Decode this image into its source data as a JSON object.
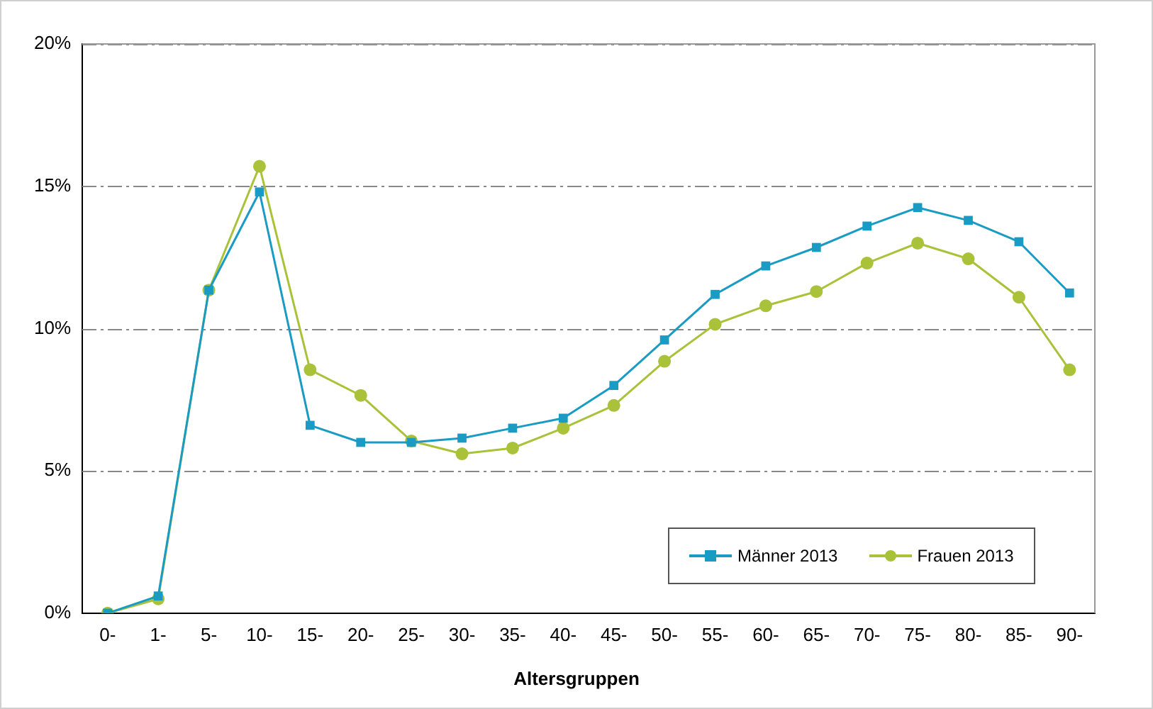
{
  "chart_data": {
    "type": "line",
    "xlabel": "Altersgruppen",
    "categories": [
      "0-",
      "1-",
      "5-",
      "10-",
      "15-",
      "20-",
      "25-",
      "30-",
      "35-",
      "40-",
      "45-",
      "50-",
      "55-",
      "60-",
      "65-",
      "70-",
      "75-",
      "80-",
      "85-",
      "90-"
    ],
    "series": [
      {
        "name": "Männer 2013",
        "color": "#1a9bc4",
        "marker": "square",
        "values": [
          0,
          0.6,
          11.35,
          14.8,
          6.6,
          6.0,
          6.0,
          6.15,
          6.5,
          6.85,
          8.0,
          9.6,
          11.2,
          12.2,
          12.85,
          13.6,
          14.25,
          13.8,
          13.05,
          11.25
        ]
      },
      {
        "name": "Frauen 2013",
        "color": "#a9c23a",
        "marker": "circle",
        "values": [
          0,
          0.5,
          11.35,
          15.7,
          8.55,
          7.65,
          6.05,
          5.6,
          5.8,
          6.5,
          7.3,
          8.85,
          10.15,
          10.8,
          11.3,
          12.3,
          13.0,
          12.45,
          11.1,
          8.55
        ]
      }
    ],
    "ylim": [
      0,
      20
    ],
    "yticks": [
      {
        "value": 0,
        "label": "0%"
      },
      {
        "value": 5,
        "label": "5%"
      },
      {
        "value": 10,
        "label": "10%"
      },
      {
        "value": 15,
        "label": "15%"
      },
      {
        "value": 20,
        "label": "20%"
      }
    ],
    "grid": "y",
    "legend": "bottom right",
    "line_style": "solid"
  }
}
